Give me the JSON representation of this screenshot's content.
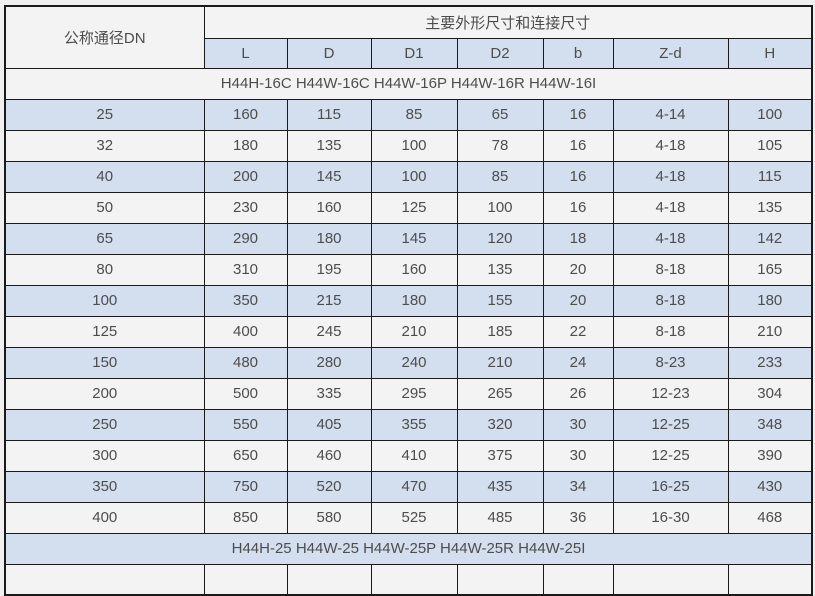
{
  "page": {
    "background_color": "#f0f0f0",
    "border_color": "#1a1a1a",
    "text_color": "#4d4d4d",
    "stripe_blue_color": "#d3deee",
    "stripe_plain_color": "#f3f3f3"
  },
  "table": {
    "corner_header": "公称通径DN",
    "main_header": "主要外形尺寸和连接尺寸",
    "columns": [
      "L",
      "D",
      "D1",
      "D2",
      "b",
      "Z-d",
      "H"
    ],
    "group_headers": [
      "H44H-16C H44W-16C H44W-16P H44W-16R H44W-16I",
      "H44H-25 H44W-25 H44W-25P H44W-25R H44W-25I"
    ],
    "rows": [
      [
        "25",
        "160",
        "115",
        "85",
        "65",
        "16",
        "4-14",
        "100"
      ],
      [
        "32",
        "180",
        "135",
        "100",
        "78",
        "16",
        "4-18",
        "105"
      ],
      [
        "40",
        "200",
        "145",
        "100",
        "85",
        "16",
        "4-18",
        "115"
      ],
      [
        "50",
        "230",
        "160",
        "125",
        "100",
        "16",
        "4-18",
        "135"
      ],
      [
        "65",
        "290",
        "180",
        "145",
        "120",
        "18",
        "4-18",
        "142"
      ],
      [
        "80",
        "310",
        "195",
        "160",
        "135",
        "20",
        "8-18",
        "165"
      ],
      [
        "100",
        "350",
        "215",
        "180",
        "155",
        "20",
        "8-18",
        "180"
      ],
      [
        "125",
        "400",
        "245",
        "210",
        "185",
        "22",
        "8-18",
        "210"
      ],
      [
        "150",
        "480",
        "280",
        "240",
        "210",
        "24",
        "8-23",
        "233"
      ],
      [
        "200",
        "500",
        "335",
        "295",
        "265",
        "26",
        "12-23",
        "304"
      ],
      [
        "250",
        "550",
        "405",
        "355",
        "320",
        "30",
        "12-25",
        "348"
      ],
      [
        "300",
        "650",
        "460",
        "410",
        "375",
        "30",
        "12-25",
        "390"
      ],
      [
        "350",
        "750",
        "520",
        "470",
        "435",
        "34",
        "16-25",
        "430"
      ],
      [
        "400",
        "850",
        "580",
        "525",
        "485",
        "36",
        "16-30",
        "468"
      ]
    ],
    "partial_bottom_row_visible": true
  }
}
